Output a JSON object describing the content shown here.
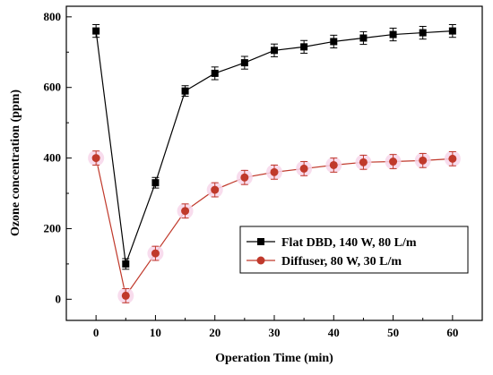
{
  "chart_data": {
    "type": "line",
    "xlabel": "Operation Time (min)",
    "ylabel": "Ozone concentration (ppm)",
    "xlim": [
      -5,
      65
    ],
    "ylim": [
      -60,
      830
    ],
    "xticks": [
      0,
      10,
      20,
      30,
      40,
      50,
      60
    ],
    "yticks": [
      0,
      200,
      400,
      600,
      800
    ],
    "grid": false,
    "legend_position": "lower-right",
    "series": [
      {
        "name": "Flat DBD, 140 W, 80 L/m",
        "color": "#000000",
        "marker": "square",
        "x": [
          0,
          5,
          10,
          15,
          20,
          25,
          30,
          35,
          40,
          45,
          50,
          55,
          60
        ],
        "y": [
          760,
          100,
          330,
          590,
          640,
          670,
          705,
          715,
          730,
          740,
          750,
          755,
          760
        ],
        "error": [
          18,
          15,
          15,
          15,
          18,
          18,
          18,
          18,
          18,
          18,
          18,
          18,
          18
        ]
      },
      {
        "name": "Diffuser, 80 W, 30 L/m",
        "color": "#c0392b",
        "marker": "circle",
        "x": [
          0,
          5,
          10,
          15,
          20,
          25,
          30,
          35,
          40,
          45,
          50,
          55,
          60
        ],
        "y": [
          400,
          10,
          130,
          250,
          310,
          345,
          360,
          370,
          380,
          388,
          390,
          393,
          398
        ],
        "error": [
          20,
          20,
          20,
          20,
          20,
          20,
          20,
          20,
          20,
          20,
          20,
          20,
          20
        ]
      }
    ]
  }
}
